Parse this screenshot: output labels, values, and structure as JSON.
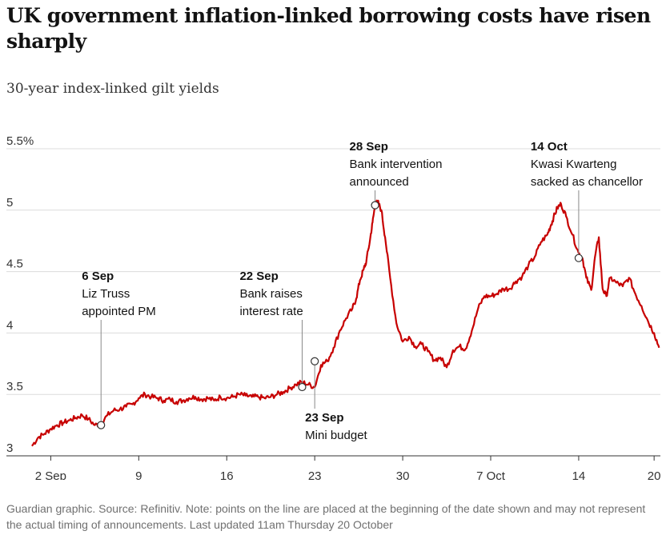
{
  "title": "UK government inflation-linked borrowing costs have risen sharply",
  "subtitle": "30-year index-linked gilt yields",
  "footer": "Guardian graphic. Source: Refinitiv. Note: points on the line are placed at the beginning of the date shown and may not represent the actual timing of announcements. Last updated 11am Thursday 20 October",
  "colors": {
    "line": "#c70000",
    "grid": "#dcdcdc",
    "axis": "#333333",
    "marker_fill": "#ffffff"
  },
  "chart_data": {
    "type": "line",
    "title": "UK government inflation-linked borrowing costs have risen sharply",
    "subtitle": "30-year index-linked gilt yields",
    "xlabel": "",
    "ylabel": "",
    "x_unit": "days since 1 Sep",
    "ylim": [
      3.0,
      5.5
    ],
    "xlim": [
      -1.0,
      49.5
    ],
    "y_ticks": [
      {
        "value": 3.0,
        "label": "3"
      },
      {
        "value": 3.5,
        "label": "3.5"
      },
      {
        "value": 4.0,
        "label": "4"
      },
      {
        "value": 4.5,
        "label": "4.5"
      },
      {
        "value": 5.0,
        "label": "5"
      },
      {
        "value": 5.5,
        "label": "5.5%"
      }
    ],
    "x_ticks": [
      {
        "value": 1,
        "label": "2 Sep"
      },
      {
        "value": 8,
        "label": "9"
      },
      {
        "value": 15,
        "label": "16"
      },
      {
        "value": 22,
        "label": "23"
      },
      {
        "value": 29,
        "label": "30"
      },
      {
        "value": 36,
        "label": "7 Oct"
      },
      {
        "value": 43,
        "label": "14"
      },
      {
        "value": 49,
        "label": "20"
      }
    ],
    "series": [
      {
        "name": "30-year index-linked gilt yield",
        "x": [
          -0.5,
          0.0,
          0.5,
          1.0,
          1.5,
          2.0,
          2.5,
          3.0,
          3.5,
          4.0,
          4.5,
          5.0,
          5.5,
          6.0,
          6.5,
          7.0,
          7.5,
          8.0,
          8.5,
          9.0,
          9.5,
          10.0,
          10.5,
          11.0,
          11.5,
          12.0,
          12.5,
          13.0,
          13.5,
          14.0,
          14.5,
          15.0,
          15.5,
          16.0,
          16.5,
          17.0,
          17.5,
          18.0,
          18.5,
          19.0,
          19.5,
          20.0,
          20.5,
          21.0,
          21.5,
          22.0,
          22.5,
          23.0,
          23.5,
          24.0,
          24.5,
          25.0,
          25.3,
          25.6,
          25.9,
          26.1,
          26.4,
          26.6,
          26.8,
          27.0,
          27.3,
          27.6,
          28.0,
          28.5,
          29.0,
          29.5,
          30.0,
          30.5,
          31.0,
          31.5,
          32.0,
          32.5,
          33.0,
          33.5,
          34.0,
          34.5,
          35.0,
          35.5,
          36.0,
          36.5,
          37.0,
          37.5,
          38.0,
          38.5,
          39.0,
          39.5,
          40.0,
          40.5,
          40.8,
          41.0,
          41.3,
          41.6,
          42.0,
          42.5,
          43.0,
          43.3,
          43.6,
          44.0,
          44.3,
          44.6,
          44.9,
          45.2,
          45.5,
          46.0,
          46.5,
          47.0,
          47.5,
          48.0,
          48.5,
          49.0,
          49.4
        ],
        "values": [
          3.08,
          3.15,
          3.18,
          3.22,
          3.25,
          3.27,
          3.29,
          3.31,
          3.33,
          3.3,
          3.25,
          3.26,
          3.33,
          3.37,
          3.38,
          3.4,
          3.42,
          3.47,
          3.5,
          3.48,
          3.47,
          3.45,
          3.46,
          3.44,
          3.45,
          3.47,
          3.48,
          3.46,
          3.47,
          3.45,
          3.48,
          3.47,
          3.48,
          3.5,
          3.49,
          3.48,
          3.48,
          3.47,
          3.48,
          3.5,
          3.52,
          3.55,
          3.58,
          3.6,
          3.58,
          3.56,
          3.74,
          3.77,
          3.88,
          4.02,
          4.12,
          4.2,
          4.28,
          4.43,
          4.52,
          4.58,
          4.76,
          4.9,
          5.04,
          5.07,
          5.0,
          4.78,
          4.45,
          4.08,
          3.93,
          3.97,
          3.89,
          3.91,
          3.85,
          3.78,
          3.8,
          3.72,
          3.86,
          3.89,
          3.87,
          4.02,
          4.2,
          4.3,
          4.3,
          4.32,
          4.36,
          4.36,
          4.42,
          4.46,
          4.55,
          4.62,
          4.74,
          4.8,
          4.88,
          4.94,
          5.02,
          5.05,
          4.95,
          4.8,
          4.65,
          4.61,
          4.45,
          4.35,
          4.62,
          4.78,
          4.36,
          4.3,
          4.45,
          4.41,
          4.38,
          4.45,
          4.32,
          4.22,
          4.1,
          4.0,
          3.88
        ]
      }
    ],
    "annotations": [
      {
        "x": 5.0,
        "y": 3.25,
        "date": "6 Sep",
        "lines": [
          "Liz Truss",
          "appointed PM"
        ],
        "placement": "above"
      },
      {
        "x": 21.0,
        "y": 3.56,
        "date": "22 Sep",
        "lines": [
          "Bank raises",
          "interest rate"
        ],
        "placement": "above"
      },
      {
        "x": 22.0,
        "y": 3.77,
        "date": "23 Sep",
        "lines": [
          "Mini budget"
        ],
        "placement": "below"
      },
      {
        "x": 26.8,
        "y": 5.04,
        "date": "28 Sep",
        "lines": [
          "Bank intervention",
          "announced"
        ],
        "placement": "above"
      },
      {
        "x": 43.0,
        "y": 4.61,
        "date": "14 Oct",
        "lines": [
          "Kwasi Kwarteng",
          "sacked as chancellor"
        ],
        "placement": "above"
      }
    ]
  }
}
